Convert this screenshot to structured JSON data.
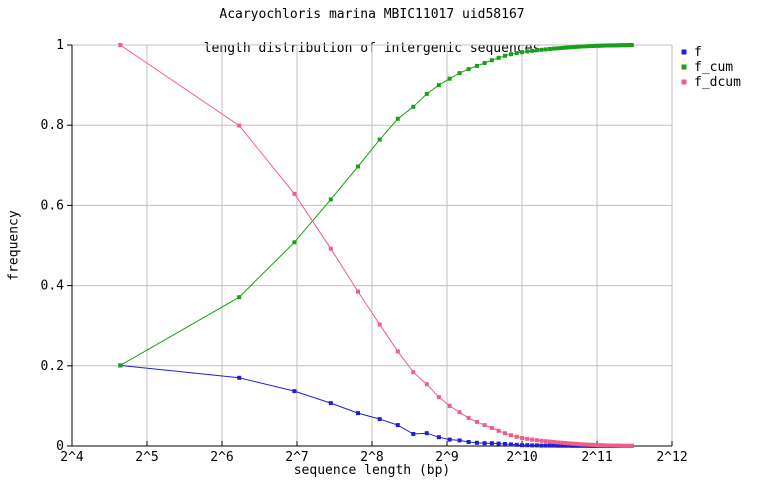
{
  "title": {
    "line1": "Acaryochloris marina MBIC11017 uid58167",
    "line2": "length distribution of intergenic sequences"
  },
  "axes": {
    "xlabel": "sequence length (bp)",
    "ylabel": "frequency",
    "x_tick_labels": [
      "2^4",
      "2^5",
      "2^6",
      "2^7",
      "2^8",
      "2^9",
      "2^10",
      "2^11",
      "2^12"
    ],
    "x_tick_log2": [
      4,
      5,
      6,
      7,
      8,
      9,
      10,
      11,
      12
    ],
    "y_tick_labels": [
      "0",
      "0.2",
      "0.4",
      "0.6",
      "0.8",
      "1"
    ],
    "y_tick_values": [
      0,
      0.2,
      0.4,
      0.6,
      0.8,
      1
    ]
  },
  "colors": {
    "f": "#2020d0",
    "f_cum": "#18a018",
    "f_dcum": "#f25c8a",
    "grid": "#c0c0c0",
    "axis": "#000000",
    "background": "#ffffff"
  },
  "legend": {
    "entries": [
      {
        "label": "f",
        "color": "#2020d0"
      },
      {
        "label": "f_cum",
        "color": "#18a018"
      },
      {
        "label": "f_dcum",
        "color": "#f25c8a"
      }
    ]
  },
  "chart_data": {
    "type": "line",
    "title": "Acaryochloris marina MBIC11017 uid58167 — length distribution of intergenic sequences",
    "xlabel": "sequence length (bp)",
    "ylabel": "frequency",
    "x_scale": "log2",
    "xlim_log2": [
      4,
      12
    ],
    "ylim": [
      0,
      1
    ],
    "grid": true,
    "legend_position": "outside-top-right",
    "marker": "square",
    "x_bin_centers_bp": [
      25,
      75,
      125,
      175,
      225,
      275,
      325,
      375,
      425,
      475,
      525,
      575,
      625,
      675,
      725,
      775,
      825,
      875,
      925,
      975,
      1025,
      1075,
      1125,
      1175,
      1225,
      1275,
      1325,
      1375,
      1425,
      1475,
      1525,
      1575,
      1625,
      1675,
      1725,
      1775,
      1825,
      1875,
      1925,
      1975,
      2025,
      2075,
      2125,
      2175,
      2225,
      2275,
      2325,
      2375,
      2425,
      2475,
      2525,
      2575,
      2625,
      2675,
      2725,
      2775,
      2825
    ],
    "series": [
      {
        "name": "f",
        "color": "#2020d0",
        "values": [
          0.201,
          0.17,
          0.137,
          0.107,
          0.082,
          0.067,
          0.052,
          0.03,
          0.032,
          0.022,
          0.016,
          0.014,
          0.01,
          0.008,
          0.007,
          0.007,
          0.006,
          0.005,
          0.004,
          0.003,
          0.002,
          0.002,
          0.0015,
          0.0015,
          0.001,
          0.001,
          0.001,
          0.001,
          0.0008,
          0.0008,
          0.0007,
          0.0007,
          0.0006,
          0.0006,
          0.0005,
          0.0005,
          0.0004,
          0.0004,
          0.0003,
          0.0003,
          0.0003,
          0.0002,
          0.0002,
          0.0002,
          0.0002,
          0.0001,
          0.0001,
          0.0001,
          0.0001,
          0.0001,
          0.0001,
          0.0001,
          0.0001,
          0.0001,
          0.0001,
          0.0001,
          0.0002
        ]
      },
      {
        "name": "f_cum",
        "color": "#18a018",
        "values": [
          0.201,
          0.371,
          0.508,
          0.615,
          0.697,
          0.764,
          0.816,
          0.846,
          0.878,
          0.9,
          0.916,
          0.93,
          0.94,
          0.948,
          0.955,
          0.962,
          0.968,
          0.973,
          0.977,
          0.98,
          0.982,
          0.984,
          0.9855,
          0.987,
          0.988,
          0.989,
          0.99,
          0.991,
          0.9918,
          0.9926,
          0.9933,
          0.994,
          0.9946,
          0.9952,
          0.9957,
          0.9962,
          0.9966,
          0.997,
          0.9973,
          0.9976,
          0.9979,
          0.9981,
          0.9983,
          0.9985,
          0.9987,
          0.9988,
          0.9989,
          0.999,
          0.9991,
          0.9992,
          0.9993,
          0.9994,
          0.9995,
          0.9996,
          0.9997,
          0.9998,
          1.0
        ]
      },
      {
        "name": "f_dcum",
        "color": "#f25c8a",
        "values": [
          1.0,
          0.799,
          0.629,
          0.492,
          0.385,
          0.303,
          0.236,
          0.184,
          0.154,
          0.122,
          0.1,
          0.084,
          0.07,
          0.06,
          0.052,
          0.045,
          0.038,
          0.032,
          0.027,
          0.023,
          0.02,
          0.018,
          0.016,
          0.0145,
          0.013,
          0.012,
          0.011,
          0.01,
          0.009,
          0.0082,
          0.0074,
          0.0067,
          0.006,
          0.0054,
          0.0048,
          0.0043,
          0.0038,
          0.0034,
          0.003,
          0.0027,
          0.0024,
          0.0021,
          0.0019,
          0.0017,
          0.0015,
          0.0013,
          0.0012,
          0.0011,
          0.001,
          0.0009,
          0.0008,
          0.0007,
          0.0006,
          0.0005,
          0.0004,
          0.0003,
          0.0002
        ]
      }
    ]
  }
}
